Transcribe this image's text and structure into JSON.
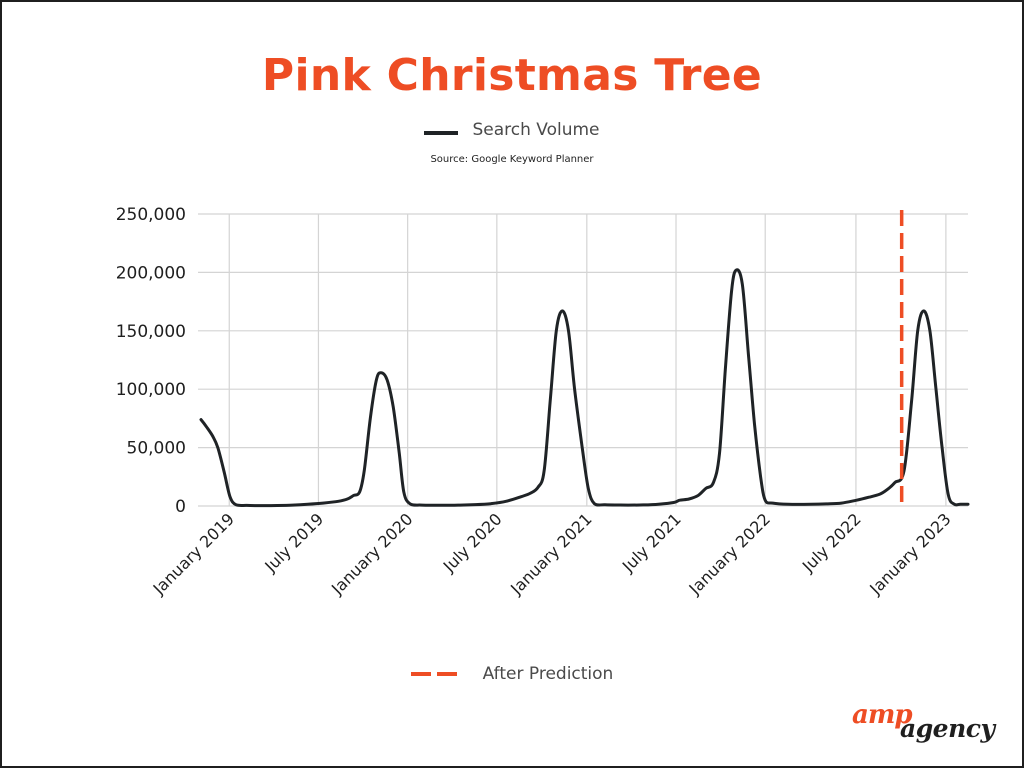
{
  "title": "Pink Christmas Tree",
  "legend": {
    "series_label": "Search Volume",
    "source": "Source: Google Keyword Planner",
    "prediction_label": "After Prediction"
  },
  "logo": {
    "part1": "amp",
    "part2": "agency"
  },
  "colors": {
    "title": "#ee4d24",
    "series": "#1f2326",
    "prediction": "#ee4d24",
    "grid": "#d4d4d4"
  },
  "chart_data": {
    "type": "line",
    "title": "Pink Christmas Tree",
    "xlabel": "",
    "ylabel": "",
    "x_unit": "months since January 2019",
    "xlim": [
      -0.2,
      50.3
    ],
    "ylim": [
      0,
      250000
    ],
    "yticks": [
      0,
      50000,
      100000,
      150000,
      200000,
      250000
    ],
    "ytick_labels": [
      "0",
      "50,000",
      "100,000",
      "150,000",
      "200,000",
      "250,000"
    ],
    "xticks": [
      {
        "x": 1.85,
        "label": "January 2019"
      },
      {
        "x": 7.7,
        "label": "July 2019"
      },
      {
        "x": 13.55,
        "label": "January 2020"
      },
      {
        "x": 19.4,
        "label": "July 2020"
      },
      {
        "x": 25.3,
        "label": "January 2021"
      },
      {
        "x": 31.15,
        "label": "July 2021"
      },
      {
        "x": 37.0,
        "label": "January 2022"
      },
      {
        "x": 42.95,
        "label": "July 2022"
      },
      {
        "x": 48.85,
        "label": "January 2023"
      }
    ],
    "grid": true,
    "prediction_line_x": 45.95,
    "series": [
      {
        "name": "Search Volume",
        "points": [
          [
            0,
            74000
          ],
          [
            0.4,
            67000
          ],
          [
            0.8,
            59000
          ],
          [
            1.1,
            50000
          ],
          [
            1.5,
            30000
          ],
          [
            1.9,
            8000
          ],
          [
            2.3,
            1000
          ],
          [
            3,
            500
          ],
          [
            4,
            300
          ],
          [
            5,
            400
          ],
          [
            6,
            800
          ],
          [
            7,
            1500
          ],
          [
            8,
            2500
          ],
          [
            9,
            4000
          ],
          [
            9.6,
            6000
          ],
          [
            10,
            9000
          ],
          [
            10.4,
            12000
          ],
          [
            10.7,
            30000
          ],
          [
            11.1,
            75000
          ],
          [
            11.5,
            108000
          ],
          [
            11.8,
            114000
          ],
          [
            12.2,
            108000
          ],
          [
            12.6,
            85000
          ],
          [
            13,
            45000
          ],
          [
            13.3,
            12000
          ],
          [
            13.7,
            2000
          ],
          [
            14.5,
            800
          ],
          [
            16,
            600
          ],
          [
            17,
            800
          ],
          [
            18,
            1200
          ],
          [
            19,
            2000
          ],
          [
            20,
            4000
          ],
          [
            21,
            8000
          ],
          [
            21.6,
            11000
          ],
          [
            22.1,
            16000
          ],
          [
            22.5,
            30000
          ],
          [
            22.9,
            90000
          ],
          [
            23.3,
            150000
          ],
          [
            23.7,
            167000
          ],
          [
            24.1,
            150000
          ],
          [
            24.5,
            100000
          ],
          [
            25,
            50000
          ],
          [
            25.4,
            15000
          ],
          [
            25.8,
            2000
          ],
          [
            26.5,
            1000
          ],
          [
            28,
            800
          ],
          [
            29,
            900
          ],
          [
            30,
            1500
          ],
          [
            31,
            3000
          ],
          [
            31.4,
            5000
          ],
          [
            32,
            6000
          ],
          [
            32.6,
            9000
          ],
          [
            33.1,
            15000
          ],
          [
            33.6,
            20000
          ],
          [
            34,
            45000
          ],
          [
            34.4,
            120000
          ],
          [
            34.8,
            185000
          ],
          [
            35.1,
            202000
          ],
          [
            35.5,
            190000
          ],
          [
            35.9,
            130000
          ],
          [
            36.3,
            70000
          ],
          [
            36.7,
            25000
          ],
          [
            37,
            5000
          ],
          [
            37.5,
            2500
          ],
          [
            38.5,
            1500
          ],
          [
            40,
            1500
          ],
          [
            41,
            1800
          ],
          [
            42,
            2500
          ],
          [
            43,
            5000
          ],
          [
            43.8,
            7500
          ],
          [
            44.5,
            10000
          ],
          [
            45,
            14000
          ],
          [
            45.5,
            20000
          ],
          [
            46.1,
            30000
          ],
          [
            46.6,
            90000
          ],
          [
            47,
            150000
          ],
          [
            47.4,
            167000
          ],
          [
            47.8,
            150000
          ],
          [
            48.2,
            100000
          ],
          [
            48.6,
            50000
          ],
          [
            49,
            10000
          ],
          [
            49.4,
            1500
          ],
          [
            49.8,
            1500
          ],
          [
            50.3,
            1500
          ]
        ]
      }
    ]
  }
}
